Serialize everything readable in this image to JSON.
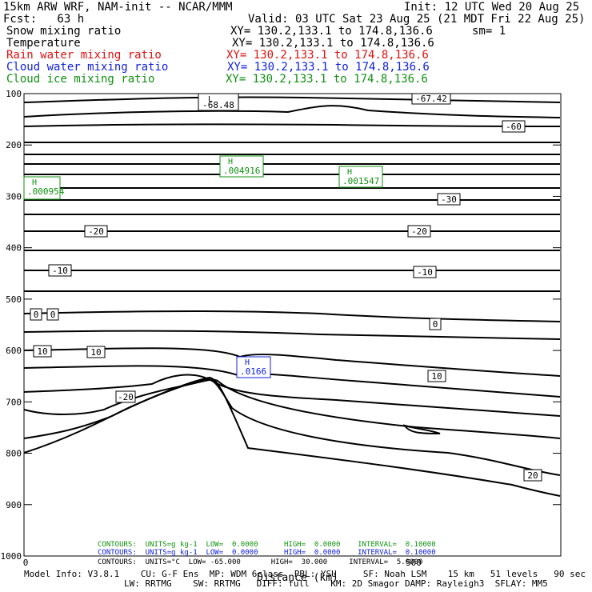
{
  "header": {
    "model": "15km ARW WRF, NAM-init -- NCAR/MMM",
    "init": "Init: 12 UTC Wed 20 Aug 25",
    "fcst": "Fcst:   63 h",
    "valid": "Valid: 03 UTC Sat 23 Aug 25 (21 MDT Fri 22 Aug 25)",
    "fields": [
      {
        "name": "Snow mixing ratio",
        "xy": "XY= 130.2,133.1 to 174.8,136.6",
        "extra": "sm= 1",
        "color": "#000000"
      },
      {
        "name": "Temperature",
        "xy": "XY= 130.2,133.1 to 174.8,136.6",
        "extra": "",
        "color": "#000000"
      },
      {
        "name": "Rain water mixing ratio",
        "xy": "XY= 130.2,133.1 to 174.8,136.6",
        "extra": "",
        "color": "#e01010"
      },
      {
        "name": "Cloud water mixing ratio",
        "xy": "XY= 130.2,133.1 to 174.8,136.6",
        "extra": "",
        "color": "#1020e0"
      },
      {
        "name": "Cloud ice mixing ratio",
        "xy": "XY= 130.2,133.1 to 174.8,136.6",
        "extra": "",
        "color": "#109010"
      }
    ]
  },
  "chart_data": {
    "type": "contour",
    "xlabel": "Distance (km)",
    "x_ticks": [
      "0",
      "500"
    ],
    "y_ticks": [
      "100",
      "200",
      "300",
      "400",
      "500",
      "600",
      "700",
      "800",
      "900",
      "1000"
    ],
    "ylim": [
      100,
      1000
    ],
    "contour_labels": [
      "-67.42",
      "-68.48",
      "-60",
      "-30",
      "-20",
      "-20",
      "-10",
      "-10",
      "0",
      "0",
      "0",
      "10",
      "10",
      "10",
      "-20",
      "20"
    ],
    "extrema": [
      {
        "kind": "L",
        "value": "-68.48",
        "color": "#000000"
      },
      {
        "kind": "H",
        "value": ".004916",
        "color": "#109010"
      },
      {
        "kind": "H",
        "value": ".001547",
        "color": "#109010"
      },
      {
        "kind": "H",
        "value": ".000954",
        "color": "#109010"
      },
      {
        "kind": "H",
        "value": ".0166",
        "color": "#1020e0"
      }
    ]
  },
  "contours": [
    {
      "text": "CONTOURS:  UNITS=g kg-1  LOW=  0.0000      HIGH=  0.0000    INTERVAL=  0.10000",
      "color": "#109010"
    },
    {
      "text": "CONTOURS:  UNITS=g kg-1  LOW=  0.0000      HIGH=  0.0000    INTERVAL=  0.10000",
      "color": "#1020e0"
    },
    {
      "text": "CONTOURS:  UNITS=°C  LOW= -65.000       HIGH=  30.000     INTERVAL=  5.0000",
      "color": "#000000"
    }
  ],
  "footer": {
    "line1": "Model Info: V3.8.1    CU: G-F Ens  MP: WDM 6class  PBL: YSU     SF: Noah LSM    15 km   51 levels   90 sec",
    "line2": "LW: RRTMG    SW: RRTMG   DIFF: full    KM: 2D Smagor DAMP: Rayleigh3  SFLAY: MM5"
  }
}
